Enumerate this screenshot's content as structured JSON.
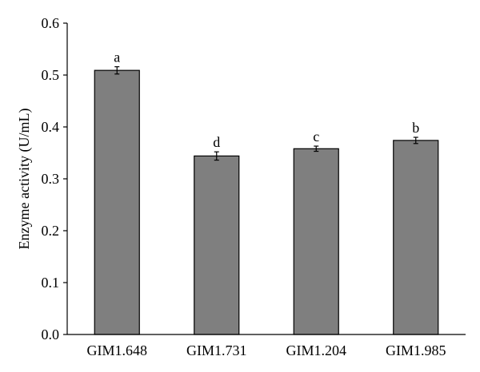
{
  "chart_data": {
    "type": "bar",
    "title": "",
    "xlabel": "",
    "ylabel": "Enzyme activity (U/mL)",
    "categories": [
      "GIM1.648",
      "GIM1.731",
      "GIM1.204",
      "GIM1.985"
    ],
    "values": [
      0.509,
      0.344,
      0.358,
      0.374
    ],
    "errors": [
      0.007,
      0.008,
      0.005,
      0.006
    ],
    "significance_letters": [
      "a",
      "d",
      "c",
      "b"
    ],
    "ylim": [
      0.0,
      0.6
    ],
    "yticks": [
      "0.0",
      "0.1",
      "0.2",
      "0.3",
      "0.4",
      "0.5",
      "0.6"
    ],
    "grid": false,
    "legend": "none",
    "colors": {
      "bar_fill": "#7f7f7f",
      "bar_stroke": "#000000",
      "axis": "#000000"
    }
  }
}
